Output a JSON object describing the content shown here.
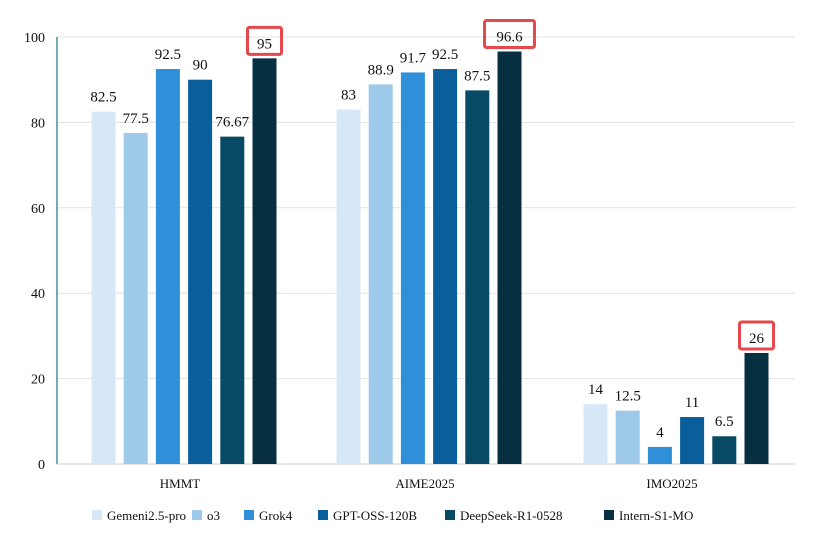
{
  "chart_data": {
    "type": "bar",
    "title": "",
    "xlabel": "",
    "ylabel": "",
    "ylim": [
      0,
      100
    ],
    "yticks": [
      0,
      20,
      40,
      60,
      80,
      100
    ],
    "grid": true,
    "legend_position": "bottom",
    "categories": [
      "HMMT",
      "AIME2025",
      "IMO2025"
    ],
    "series": [
      {
        "name": "Gemeni2.5-pro",
        "color": "#d6e8f7",
        "values": [
          82.5,
          83,
          14
        ],
        "labels": [
          "82.5",
          "83",
          "14"
        ]
      },
      {
        "name": "o3",
        "color": "#9ecae9",
        "values": [
          77.5,
          88.9,
          12.5
        ],
        "labels": [
          "77.5",
          "88.9",
          "12.5"
        ]
      },
      {
        "name": "Grok4",
        "color": "#2f8fd8",
        "values": [
          92.5,
          91.7,
          4
        ],
        "labels": [
          "92.5",
          "91.7",
          "4"
        ]
      },
      {
        "name": "GPT-OSS-120B",
        "color": "#0b5e9c",
        "values": [
          90,
          92.5,
          11
        ],
        "labels": [
          "90",
          "92.5",
          "11"
        ]
      },
      {
        "name": "DeepSeek-R1-0528",
        "color": "#084a66",
        "values": [
          76.67,
          87.5,
          6.5
        ],
        "labels": [
          "76.67",
          "87.5",
          "6.5"
        ]
      },
      {
        "name": "Intern-S1-MO",
        "color": "#062f42",
        "values": [
          95,
          96.6,
          26
        ],
        "labels": [
          "95",
          "96.6",
          "26"
        ],
        "highlighted": true
      }
    ],
    "highlight_color": "#e5484d"
  }
}
